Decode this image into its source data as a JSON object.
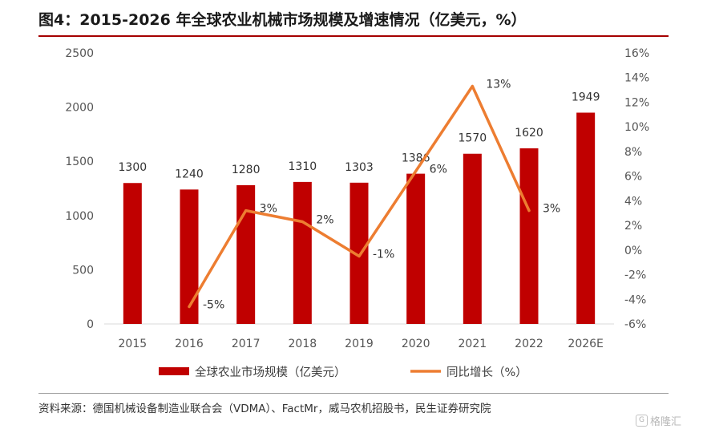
{
  "header": {
    "title": "图4：2015-2026 年全球农业机械市场规模及增速情况（亿美元，%）"
  },
  "footer": {
    "source": "资料来源：德国机械设备制造业联合会（VDMA）、FactMr，威马农机招股书，民生证券研究院"
  },
  "watermark": {
    "text": "格隆汇",
    "mark": "G"
  },
  "colors": {
    "bar": "#c00000",
    "line": "#ed7d31",
    "accent_rule": "#a50000"
  },
  "chart_data": {
    "type": "bar",
    "title": "图4：2015-2026 年全球农业机械市场规模及增速情况（亿美元，%）",
    "categories": [
      "2015",
      "2016",
      "2017",
      "2018",
      "2019",
      "2020",
      "2021",
      "2022",
      "2026E"
    ],
    "y_left": {
      "ylim": [
        0,
        2500
      ],
      "ticks": [
        "0",
        "500",
        "1000",
        "1500",
        "2000",
        "2500"
      ]
    },
    "y_right": {
      "ylim": [
        -6,
        16
      ],
      "ticks": [
        "-6%",
        "-4%",
        "-2%",
        "0%",
        "2%",
        "4%",
        "6%",
        "8%",
        "10%",
        "12%",
        "14%",
        "16%"
      ]
    },
    "series": [
      {
        "name": "全球农业市场规模（亿美元）",
        "type": "bar",
        "axis": "left",
        "values": [
          1300,
          1240,
          1280,
          1310,
          1303,
          1386,
          1570,
          1620,
          1949
        ],
        "labels": [
          "1300",
          "1240",
          "1280",
          "1310",
          "1303",
          "1386",
          "1570",
          "1620",
          "1949"
        ]
      },
      {
        "name": "同比增长（%）",
        "type": "line",
        "axis": "right",
        "values": [
          null,
          -4.6,
          3.2,
          2.3,
          -0.5,
          6.4,
          13.3,
          3.2,
          null
        ],
        "labels": [
          "",
          "-5%",
          "3%",
          "2%",
          "-1%",
          "6%",
          "13%",
          "3%",
          ""
        ]
      }
    ],
    "legend": {
      "position": "bottom"
    },
    "grid": false
  }
}
